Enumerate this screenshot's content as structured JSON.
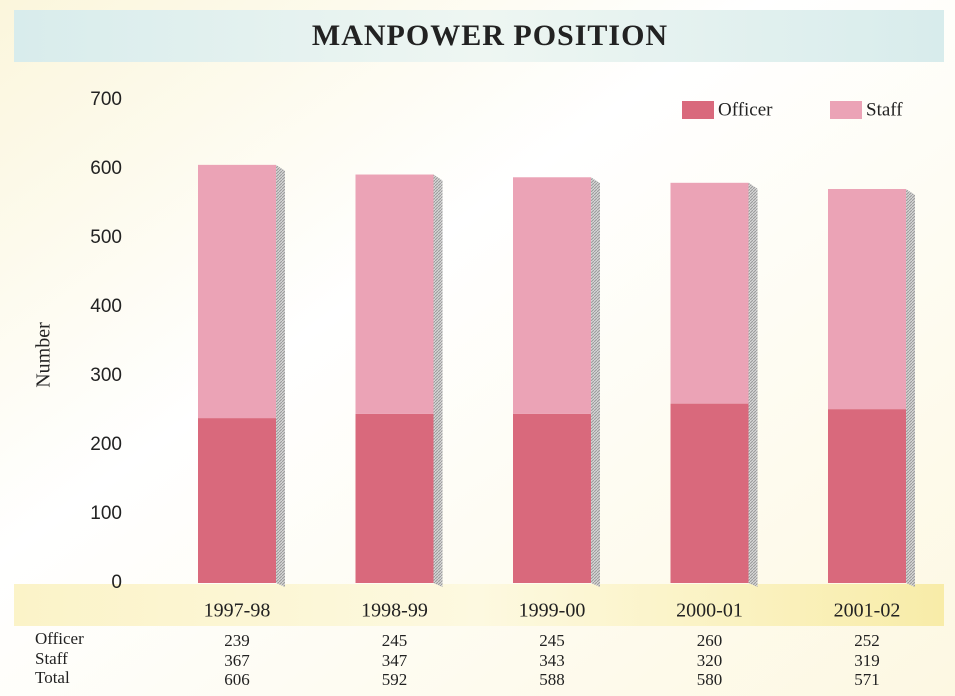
{
  "chart_data": {
    "type": "stacked_bar",
    "title": "MANPOWER POSITION",
    "y_label": "Number",
    "categories": [
      "1997-98",
      "1998-99",
      "1999-00",
      "2000-01",
      "2001-02"
    ],
    "series": [
      {
        "name": "Officer",
        "color": "#d9697c",
        "values": [
          239,
          245,
          245,
          260,
          252
        ]
      },
      {
        "name": "Staff",
        "color": "#eba3b6",
        "values": [
          367,
          347,
          343,
          320,
          319
        ]
      }
    ],
    "total_label": "Total",
    "totals": [
      606,
      592,
      588,
      580,
      571
    ],
    "ylim": [
      0,
      700
    ],
    "yticks": [
      0,
      100,
      200,
      300,
      400,
      500,
      600,
      700
    ],
    "grid": false,
    "legend": "top-right"
  }
}
